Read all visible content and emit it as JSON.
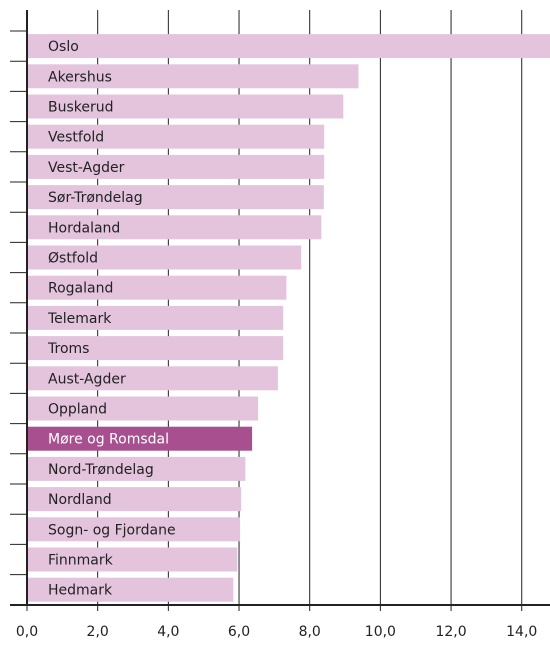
{
  "chart_data": {
    "type": "bar",
    "orientation": "horizontal",
    "categories": [
      "Oslo",
      "Akershus",
      "Buskerud",
      "Vestfold",
      "Vest-Agder",
      "Sør-Trøndelag",
      "Hordaland",
      "Østfold",
      "Rogaland",
      "Telemark",
      "Troms",
      "Aust-Agder",
      "Oppland",
      "Møre og Romsdal",
      "Nord-Trøndelag",
      "Nordland",
      "Sogn- og Fjordane",
      "Finnmark",
      "Hedmark"
    ],
    "values": [
      14.8,
      9.38,
      8.95,
      8.41,
      8.41,
      8.4,
      8.33,
      7.76,
      7.34,
      7.25,
      7.25,
      7.1,
      6.54,
      6.37,
      6.18,
      6.06,
      6.03,
      5.95,
      5.84
    ],
    "colors": [
      "#e4c4dd",
      "#e4c4dd",
      "#e4c4dd",
      "#e4c4dd",
      "#e4c4dd",
      "#e4c4dd",
      "#e4c4dd",
      "#e4c4dd",
      "#e4c4dd",
      "#e4c4dd",
      "#e4c4dd",
      "#e4c4dd",
      "#e4c4dd",
      "#a8508f",
      "#e4c4dd",
      "#e4c4dd",
      "#e4c4dd",
      "#e4c4dd",
      "#e4c4dd"
    ],
    "label_colors": [
      "#222",
      "#222",
      "#222",
      "#222",
      "#222",
      "#222",
      "#222",
      "#222",
      "#222",
      "#222",
      "#222",
      "#222",
      "#222",
      "#ffffff",
      "#222",
      "#222",
      "#222",
      "#222",
      "#222"
    ],
    "xlim": [
      0,
      14.8
    ],
    "xticks": [
      {
        "value": 0,
        "label": "0,0"
      },
      {
        "value": 2,
        "label": "2,0"
      },
      {
        "value": 4,
        "label": "4,0"
      },
      {
        "value": 6,
        "label": "6,0"
      },
      {
        "value": 8,
        "label": "8,0"
      },
      {
        "value": 10,
        "label": "10,0"
      },
      {
        "value": 12,
        "label": "12,0"
      },
      {
        "value": 14,
        "label": "14,0"
      }
    ],
    "grid": true
  }
}
